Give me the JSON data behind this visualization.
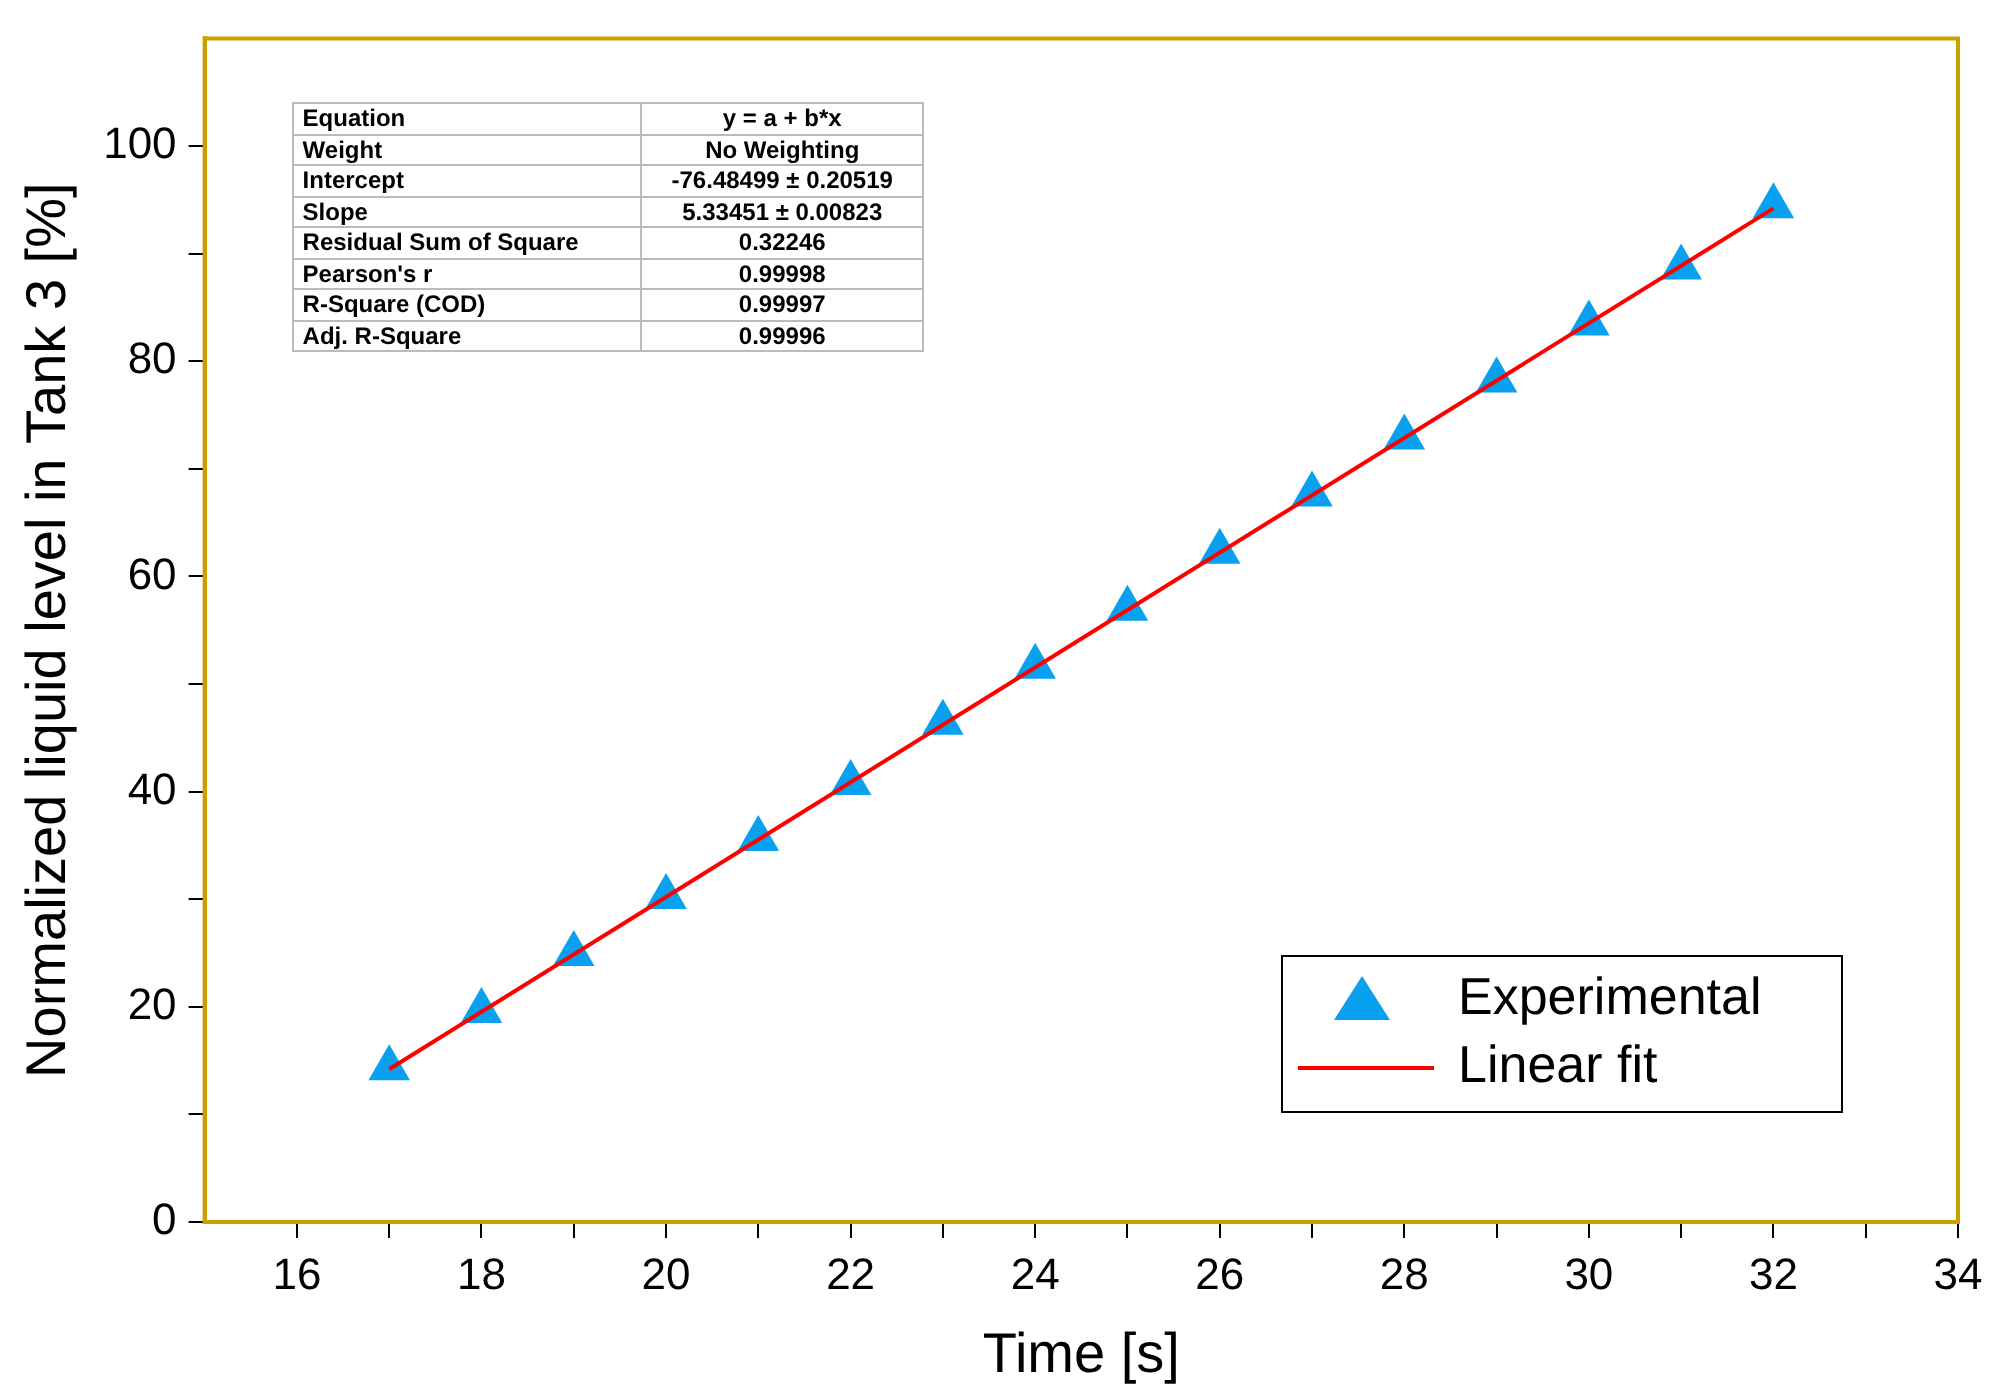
{
  "chart_data": {
    "type": "scatter",
    "xlabel": "Time [s]",
    "ylabel": "Normalized liquid level in Tank 3 [%]",
    "xlim": [
      15,
      34
    ],
    "ylim": [
      0,
      110
    ],
    "xticks": [
      16,
      {
        "value": 17,
        "label": null
      },
      18,
      {
        "value": 19,
        "label": null
      },
      20,
      {
        "value": 21,
        "label": null
      },
      22,
      {
        "value": 23,
        "label": null
      },
      24,
      {
        "value": 25,
        "label": null
      },
      26,
      {
        "value": 27,
        "label": null
      },
      28,
      {
        "value": 29,
        "label": null
      },
      30,
      {
        "value": 31,
        "label": null
      },
      32,
      {
        "value": 33,
        "label": null
      },
      34
    ],
    "yticks": [
      0,
      {
        "value": 10,
        "label": null
      },
      20,
      {
        "value": 30,
        "label": null
      },
      40,
      {
        "value": 50,
        "label": null
      },
      60,
      {
        "value": 70,
        "label": null
      },
      80,
      {
        "value": 90,
        "label": null
      },
      100
    ],
    "grid": false,
    "legend": "bottom right",
    "marker": "triangle",
    "series": [
      {
        "name": "Experimental",
        "type": "scatter",
        "color": "#0aa0f0",
        "x": [
          17,
          18,
          19,
          20,
          21,
          22,
          23,
          24,
          25,
          26,
          27,
          28,
          29,
          30,
          31,
          32
        ],
        "values": [
          14.3,
          19.6,
          24.9,
          30.2,
          35.6,
          40.8,
          46.4,
          51.6,
          57.0,
          62.3,
          67.6,
          72.9,
          78.2,
          83.5,
          88.7,
          94.4
        ]
      },
      {
        "name": "Linear fit",
        "type": "line",
        "color": "#ff0000",
        "line_style": "solid",
        "marker": "none",
        "x": [
          17,
          32
        ],
        "values": [
          14.2,
          94.2
        ]
      }
    ],
    "annotations": [
      "Equation",
      "y = a + b*x",
      "Weight",
      "No Weighting",
      "Intercept",
      "-76.48499 ± 0.20519",
      "Slope",
      "5.33451 ± 0.00823",
      "Residual Sum of Square",
      "0.32246",
      "Pearson's r",
      "0.99998",
      "R-Square (COD)",
      "0.99997",
      "Adj. R-Square",
      "0.99996"
    ]
  }
}
